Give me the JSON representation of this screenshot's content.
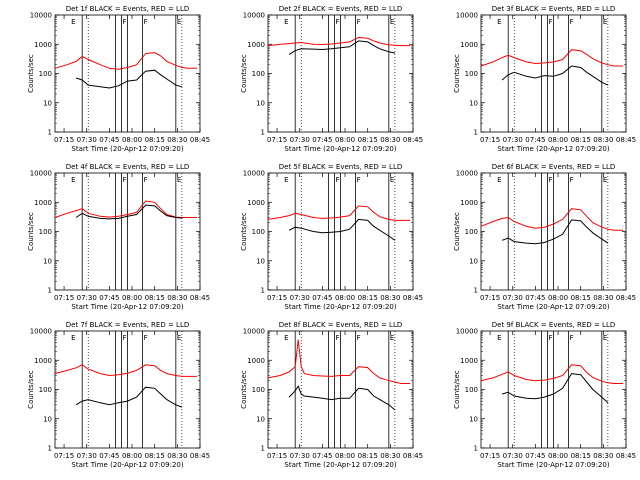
{
  "chart_data": {
    "common": {
      "type": "line",
      "xlabel": "Start Time (20-Apr-12 07:09:20)",
      "ylabel": "Counts/sec",
      "x_ticks": [
        "07:15",
        "07:30",
        "07:45",
        "08:00",
        "08:15",
        "08:30",
        "08:45"
      ],
      "y_ticks": [
        "1",
        "10",
        "100",
        "1000",
        "10000"
      ],
      "y_scale": "log",
      "xlim_minutes": [
        0,
        96
      ],
      "ylim": [
        1,
        10000
      ],
      "series_colors": {
        "events": "#000000",
        "lld": "#ff0000"
      },
      "vertical_markers_minutes": [
        18,
        40,
        44,
        48,
        58,
        80
      ],
      "dotted_markers_minutes": [
        22,
        84
      ],
      "marker_labels": [
        {
          "text": "E",
          "x": 10
        },
        {
          "text": "F",
          "x": 44
        },
        {
          "text": "F",
          "x": 58
        },
        {
          "text": "E",
          "x": 80
        }
      ]
    },
    "panels": [
      {
        "title": "Det 1f BLACK = Events, RED = LLD",
        "x": [
          0,
          8,
          14,
          18,
          22,
          30,
          36,
          42,
          48,
          54,
          60,
          66,
          70,
          74,
          80,
          84,
          88,
          94
        ],
        "events": [
          null,
          null,
          70,
          60,
          40,
          35,
          32,
          38,
          55,
          60,
          120,
          130,
          90,
          65,
          40,
          35,
          null,
          null
        ],
        "lld": [
          150,
          200,
          260,
          380,
          300,
          200,
          150,
          140,
          160,
          200,
          480,
          520,
          400,
          260,
          190,
          160,
          150,
          150
        ]
      },
      {
        "title": "Det 2f BLACK = Events, RED = LLD",
        "x": [
          0,
          8,
          14,
          18,
          22,
          30,
          36,
          42,
          48,
          54,
          60,
          66,
          70,
          74,
          80,
          84,
          88,
          94
        ],
        "events": [
          null,
          null,
          450,
          600,
          700,
          680,
          660,
          700,
          760,
          820,
          1300,
          1200,
          900,
          700,
          550,
          500,
          null,
          null
        ],
        "lld": [
          900,
          1000,
          1050,
          1100,
          1150,
          1000,
          980,
          1020,
          1100,
          1200,
          1700,
          1600,
          1300,
          1100,
          950,
          920,
          900,
          900
        ]
      },
      {
        "title": "Det 3f BLACK = Events, RED = LLD",
        "x": [
          0,
          8,
          14,
          18,
          22,
          30,
          36,
          42,
          48,
          54,
          60,
          66,
          70,
          74,
          80,
          84,
          88,
          94
        ],
        "events": [
          null,
          null,
          60,
          90,
          110,
          80,
          70,
          85,
          80,
          100,
          180,
          160,
          110,
          80,
          50,
          40,
          null,
          null
        ],
        "lld": [
          180,
          250,
          350,
          420,
          350,
          250,
          220,
          230,
          250,
          300,
          650,
          600,
          450,
          320,
          230,
          200,
          180,
          180
        ]
      },
      {
        "title": "Det 4f BLACK = Events, RED = LLD",
        "x": [
          0,
          8,
          14,
          18,
          22,
          30,
          36,
          42,
          48,
          54,
          60,
          66,
          70,
          74,
          80,
          84,
          88,
          94
        ],
        "events": [
          null,
          null,
          300,
          420,
          330,
          280,
          270,
          280,
          330,
          380,
          800,
          750,
          500,
          350,
          300,
          290,
          null,
          null
        ],
        "lld": [
          300,
          420,
          520,
          600,
          420,
          330,
          310,
          330,
          380,
          450,
          1100,
          1000,
          600,
          380,
          310,
          300,
          300,
          300
        ]
      },
      {
        "title": "Det 5f BLACK = Events, RED = LLD",
        "x": [
          0,
          8,
          14,
          18,
          22,
          30,
          36,
          42,
          48,
          54,
          60,
          66,
          70,
          74,
          80,
          84,
          88,
          94
        ],
        "events": [
          null,
          null,
          110,
          140,
          130,
          100,
          90,
          95,
          100,
          120,
          260,
          240,
          150,
          110,
          70,
          50,
          null,
          null
        ],
        "lld": [
          260,
          300,
          350,
          420,
          380,
          300,
          280,
          290,
          310,
          350,
          750,
          700,
          450,
          320,
          260,
          240,
          240,
          240
        ]
      },
      {
        "title": "Det 6f BLACK = Events, RED = LLD",
        "x": [
          0,
          8,
          14,
          18,
          22,
          30,
          36,
          42,
          48,
          54,
          60,
          66,
          70,
          74,
          80,
          84,
          88,
          94
        ],
        "events": [
          null,
          null,
          50,
          60,
          45,
          40,
          38,
          42,
          55,
          80,
          250,
          230,
          140,
          90,
          55,
          40,
          null,
          null
        ],
        "lld": [
          150,
          220,
          280,
          300,
          220,
          150,
          130,
          140,
          180,
          260,
          600,
          550,
          330,
          200,
          140,
          120,
          110,
          110
        ]
      },
      {
        "title": "Det 7f BLACK = Events, RED = LLD",
        "x": [
          0,
          8,
          14,
          18,
          22,
          30,
          36,
          42,
          48,
          54,
          60,
          66,
          70,
          74,
          80,
          84,
          88,
          94
        ],
        "events": [
          null,
          null,
          30,
          40,
          45,
          35,
          30,
          35,
          40,
          55,
          120,
          110,
          70,
          45,
          30,
          25,
          null,
          null
        ],
        "lld": [
          350,
          450,
          550,
          700,
          500,
          350,
          300,
          320,
          360,
          450,
          700,
          650,
          450,
          350,
          300,
          280,
          280,
          280
        ]
      },
      {
        "title": "Det 8f BLACK = Events, RED = LLD",
        "x": [
          0,
          8,
          14,
          18,
          20,
          22,
          24,
          30,
          36,
          42,
          48,
          54,
          60,
          66,
          70,
          74,
          80,
          84,
          88,
          94
        ],
        "events": [
          null,
          null,
          55,
          90,
          130,
          70,
          60,
          55,
          50,
          45,
          50,
          50,
          110,
          100,
          60,
          45,
          30,
          20,
          null,
          null
        ],
        "lld": [
          250,
          300,
          400,
          600,
          5000,
          600,
          350,
          300,
          290,
          280,
          300,
          300,
          600,
          560,
          350,
          250,
          200,
          180,
          160,
          160
        ]
      },
      {
        "title": "Det 9f BLACK = Events, RED = LLD",
        "x": [
          0,
          8,
          14,
          18,
          22,
          30,
          36,
          42,
          48,
          54,
          60,
          66,
          70,
          74,
          80,
          84,
          88,
          94
        ],
        "events": [
          null,
          null,
          70,
          80,
          60,
          50,
          48,
          55,
          70,
          110,
          350,
          320,
          180,
          100,
          55,
          35,
          null,
          null
        ],
        "lld": [
          200,
          250,
          330,
          400,
          300,
          220,
          200,
          210,
          240,
          300,
          700,
          650,
          380,
          260,
          190,
          170,
          160,
          160
        ]
      }
    ]
  }
}
